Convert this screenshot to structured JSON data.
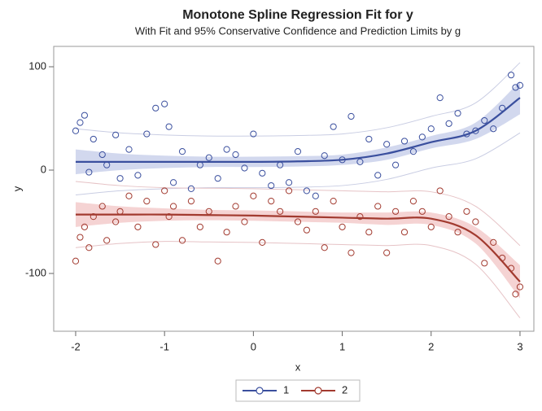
{
  "chart_data": {
    "type": "scatter",
    "title": "Monotone Spline Regression Fit for y",
    "subtitle": "With Fit and 95% Conservative Confidence and Prediction Limits by g",
    "x_label": "x",
    "y_label": "y",
    "xlim": [
      -2.247,
      3.156
    ],
    "ylim": [
      -155.9,
      119.7
    ],
    "xticks": [
      -2,
      -1,
      0,
      1,
      2,
      3
    ],
    "yticks": [
      -100,
      0,
      100
    ],
    "x": [
      -2,
      -1.95,
      -1.9,
      -1.85,
      -1.8,
      -1.7,
      -1.65,
      -1.55,
      -1.5,
      -1.4,
      -1.3,
      -1.2,
      -1.1,
      -1.0,
      -0.95,
      -0.9,
      -0.8,
      -0.7,
      -0.6,
      -0.5,
      -0.4,
      -0.3,
      -0.2,
      -0.1,
      0,
      0.1,
      0.2,
      0.3,
      0.4,
      0.5,
      0.6,
      0.7,
      0.8,
      0.9,
      1.0,
      1.1,
      1.2,
      1.3,
      1.4,
      1.5,
      1.6,
      1.7,
      1.8,
      1.9,
      2.0,
      2.1,
      2.2,
      2.3,
      2.4,
      2.5,
      2.6,
      2.7,
      2.8,
      2.9,
      2.95,
      3.0
    ],
    "fit_x": [
      -2,
      -1.5,
      -1,
      -0.5,
      0,
      0.5,
      1,
      1.5,
      2,
      2.5,
      3
    ],
    "series": [
      {
        "name": "1",
        "color": "#3a4f9e",
        "band_color": "#c3cbe8",
        "limit_color": "#c9cde3",
        "values": [
          38,
          46,
          53,
          -2,
          30,
          15,
          5,
          34,
          -8,
          20,
          -5,
          35,
          60,
          64,
          42,
          -12,
          18,
          -18,
          5,
          12,
          -8,
          20,
          15,
          2,
          35,
          -3,
          -15,
          5,
          -12,
          18,
          -20,
          -25,
          14,
          42,
          10,
          52,
          8,
          30,
          -5,
          25,
          5,
          28,
          18,
          32,
          40,
          70,
          45,
          55,
          35,
          38,
          48,
          40,
          60,
          92,
          80,
          82
        ],
        "fit": [
          8,
          8,
          8,
          8,
          8,
          8.5,
          10,
          16,
          27,
          38,
          70
        ],
        "clm_lower": [
          -4,
          0,
          2,
          3,
          3,
          3.5,
          5,
          10,
          21,
          30,
          54
        ],
        "clm_upper": [
          20,
          16,
          14,
          13,
          13,
          13.5,
          15,
          22,
          33,
          46,
          86
        ],
        "plm_lower": [
          -24,
          -20,
          -18,
          -17,
          -17,
          -16.5,
          -15,
          -9,
          2,
          11,
          36
        ],
        "plm_upper": [
          40,
          36,
          34,
          33,
          33,
          33.5,
          35,
          41,
          52,
          65,
          104
        ]
      },
      {
        "name": "2",
        "color": "#a23a2f",
        "band_color": "#f2c4c4",
        "limit_color": "#e6c3c6",
        "values": [
          -88,
          -65,
          -55,
          -75,
          -45,
          -35,
          -68,
          -50,
          -40,
          -25,
          -55,
          -30,
          -72,
          -20,
          -45,
          -35,
          -68,
          -30,
          -55,
          -40,
          -88,
          -60,
          -35,
          -50,
          -25,
          -70,
          -30,
          -40,
          -20,
          -50,
          -58,
          -40,
          -75,
          -30,
          -55,
          -80,
          -45,
          -60,
          -35,
          -80,
          -40,
          -60,
          -30,
          -40,
          -55,
          -20,
          -45,
          -60,
          -40,
          -50,
          -90,
          -70,
          -85,
          -95,
          -120,
          -113
        ],
        "fit": [
          -43,
          -43,
          -43,
          -43.5,
          -44,
          -45,
          -46,
          -47,
          -47,
          -63,
          -108
        ],
        "clm_lower": [
          -55,
          -51,
          -49,
          -48.5,
          -49,
          -50,
          -51,
          -53,
          -53,
          -71,
          -124
        ],
        "clm_upper": [
          -31,
          -35,
          -37,
          -38.5,
          -39,
          -40,
          -41,
          -41,
          -41,
          -55,
          -92
        ],
        "plm_lower": [
          -75,
          -71,
          -69,
          -69.5,
          -70,
          -71,
          -72,
          -73,
          -73,
          -91,
          -143
        ],
        "plm_upper": [
          -11,
          -15,
          -17,
          -17.5,
          -18,
          -19,
          -20,
          -21,
          -21,
          -35,
          -73
        ]
      }
    ]
  }
}
